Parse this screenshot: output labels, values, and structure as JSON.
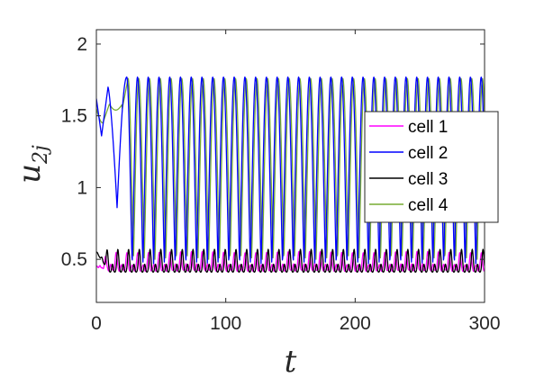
{
  "chart_data": {
    "type": "line",
    "title": "",
    "xlabel": "t",
    "ylabel": {
      "base": "u",
      "subscript": "2j"
    },
    "xlim": [
      0,
      300
    ],
    "ylim": [
      0.2,
      2.1
    ],
    "xticks": [
      0,
      100,
      200,
      300
    ],
    "xtick_labels": [
      "0",
      "100",
      "200",
      "300"
    ],
    "yticks": [
      0.5,
      1,
      1.5,
      2
    ],
    "ytick_labels": [
      "0.5",
      "1",
      "1.5",
      "2"
    ],
    "grid": false,
    "legend_position": "right",
    "series": [
      {
        "name": "cell 1",
        "color": "#ff00ff",
        "description_values": {
          "baseline": 0.42,
          "peak": 0.55,
          "period": 8.3,
          "start": 0.45
        }
      },
      {
        "name": "cell 2",
        "color": "#0000ff",
        "description_values": {
          "start": 1.62,
          "first_dip": 1.36,
          "first_peak": 1.7,
          "drop_min": 0.86,
          "osc_min": 0.47,
          "osc_max": 1.77,
          "period": 8.3,
          "end": 1.65
        }
      },
      {
        "name": "cell 3",
        "color": "#000000",
        "description_values": {
          "baseline": 0.41,
          "peak": 0.57,
          "period": 8.3,
          "start": 0.55
        }
      },
      {
        "name": "cell 4",
        "color": "#77ac30",
        "description_values": {
          "start": 1.55,
          "first_dip": 1.45,
          "osc_min": 0.5,
          "osc_max": 1.76,
          "period": 8.3,
          "end": 1.57
        }
      }
    ]
  }
}
